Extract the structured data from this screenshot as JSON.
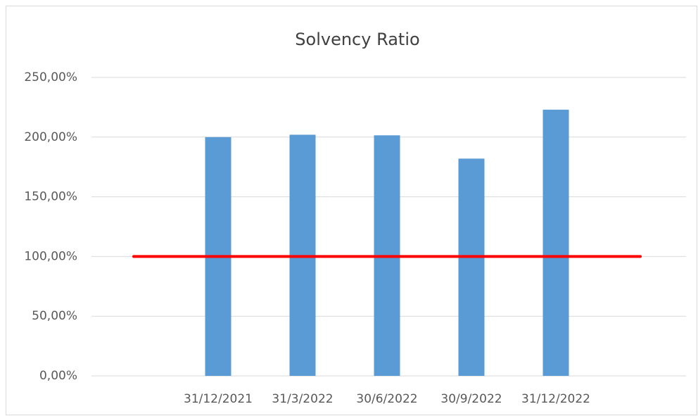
{
  "chart_data": {
    "type": "bar",
    "title": "Solvency Ratio",
    "categories": [
      null,
      "31/12/2021",
      "31/3/2022",
      "30/6/2022",
      "30/9/2022",
      "31/12/2022",
      null
    ],
    "series": [
      {
        "type": "bar",
        "color": "#5b9bd5",
        "values": [
          null,
          200,
          202,
          201.5,
          182,
          223,
          null
        ]
      },
      {
        "type": "line",
        "color": "#ff0000",
        "values": [
          100,
          100,
          100,
          100,
          100,
          100,
          100
        ]
      }
    ],
    "ylim": [
      0,
      250
    ],
    "yticks": [
      {
        "value": 0,
        "label": "0,00%"
      },
      {
        "value": 50,
        "label": "50,00%"
      },
      {
        "value": 100,
        "label": "100,00%"
      },
      {
        "value": 150,
        "label": "150,00%"
      },
      {
        "value": 200,
        "label": "200,00%"
      },
      {
        "value": 250,
        "label": "250,00%"
      }
    ],
    "grid": true
  }
}
